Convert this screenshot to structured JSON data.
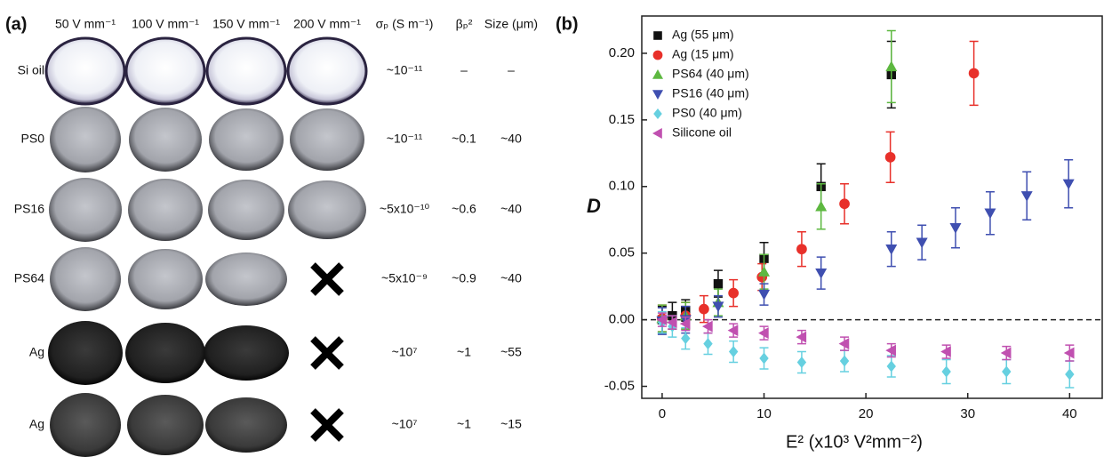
{
  "panel_a": {
    "label": "(a)",
    "headers": [
      "50 V mm⁻¹",
      "100 V mm⁻¹",
      "150 V mm⁻¹",
      "200 V mm⁻¹",
      "σₚ (S m⁻¹)",
      "βₚ²",
      "Size (μm)"
    ],
    "rows": [
      {
        "label": "Si oil",
        "values": [
          "~10⁻¹¹",
          "–",
          "–"
        ]
      },
      {
        "label": "PS0",
        "values": [
          "~10⁻¹¹",
          "~0.1",
          "~40"
        ]
      },
      {
        "label": "PS16",
        "values": [
          "~5x10⁻¹⁰",
          "~0.6",
          "~40"
        ]
      },
      {
        "label": "PS64",
        "values": [
          "~5x10⁻⁹",
          "~0.9",
          "~40"
        ]
      },
      {
        "label": "Ag",
        "values": [
          "~10⁷",
          "~1",
          "~55"
        ]
      },
      {
        "label": "Ag",
        "values": [
          "~10⁷",
          "~1",
          "~15"
        ]
      }
    ]
  },
  "chart_data": {
    "type": "scatter",
    "panel_label": "(b)",
    "x_label": "E² (x10³ V²mm⁻²)",
    "y_label": "D",
    "xlim": [
      -2,
      43.2
    ],
    "xticks": [
      0,
      10,
      20,
      30,
      40
    ],
    "ylim": [
      -0.059,
      0.228
    ],
    "yticks": [
      -0.05,
      {
        "value": 0,
        "label": "0.00"
      },
      0.05,
      {
        "value": 0.1,
        "label": "0.10"
      },
      0.15,
      {
        "value": 0.2,
        "label": "0.20"
      }
    ],
    "legend": "upper left",
    "series": [
      {
        "name": "Ag (55 μm)",
        "color": "#111111",
        "marker": "square",
        "x": [
          0,
          1,
          2.3,
          5.5,
          10,
          15.6,
          22.5
        ],
        "values": [
          0,
          0.003,
          0.007,
          0.027,
          0.046,
          0.1,
          0.184
        ],
        "errors": [
          0.01,
          0.01,
          0.008,
          0.01,
          0.012,
          0.017,
          0.025
        ]
      },
      {
        "name": "Ag (15 μm)",
        "color": "#e8302a",
        "marker": "circle",
        "x": [
          0,
          2.3,
          4.1,
          7,
          9.8,
          13.7,
          17.9,
          22.4,
          30.6
        ],
        "values": [
          0.001,
          0.003,
          0.008,
          0.02,
          0.032,
          0.053,
          0.087,
          0.122,
          0.185
        ],
        "errors": [
          0.01,
          0.01,
          0.01,
          0.01,
          0.01,
          0.013,
          0.015,
          0.019,
          0.024
        ]
      },
      {
        "name": "PS64 (40 μm)",
        "color": "#5db840",
        "marker": "triangle-up",
        "x": [
          0,
          2.3,
          5.5,
          10,
          15.6,
          22.5
        ],
        "values": [
          0.001,
          0.003,
          0.013,
          0.036,
          0.085,
          0.19
        ],
        "errors": [
          0.01,
          0.01,
          0.01,
          0.013,
          0.017,
          0.027
        ]
      },
      {
        "name": "PS16 (40 μm)",
        "color": "#3f4fb0",
        "marker": "triangle-down",
        "x": [
          0,
          2.3,
          5.5,
          10,
          15.6,
          22.5,
          25.5,
          28.8,
          32.2,
          35.8,
          39.9
        ],
        "values": [
          -0.001,
          0,
          0.01,
          0.019,
          0.035,
          0.053,
          0.058,
          0.069,
          0.08,
          0.093,
          0.102
        ],
        "errors": [
          0.01,
          0.01,
          0.008,
          0.008,
          0.012,
          0.013,
          0.013,
          0.015,
          0.016,
          0.018,
          0.018
        ]
      },
      {
        "name": "PS0 (40 μm)",
        "color": "#66d0e0",
        "marker": "diamond",
        "x": [
          0,
          1,
          2.3,
          4.5,
          7,
          10,
          13.7,
          17.9,
          22.5,
          27.9,
          33.8,
          40
        ],
        "values": [
          -0.002,
          -0.005,
          -0.014,
          -0.018,
          -0.024,
          -0.029,
          -0.032,
          -0.031,
          -0.035,
          -0.039,
          -0.039,
          -0.041
        ],
        "errors": [
          0.008,
          0.008,
          0.008,
          0.008,
          0.008,
          0.008,
          0.008,
          0.008,
          0.008,
          0.009,
          0.009,
          0.01
        ]
      },
      {
        "name": "Silicone oil",
        "color": "#c050b0",
        "marker": "triangle-left",
        "x": [
          0,
          1,
          2.3,
          4.5,
          7,
          10,
          13.7,
          17.9,
          22.5,
          27.9,
          33.8,
          40
        ],
        "values": [
          0,
          -0.002,
          -0.003,
          -0.005,
          -0.008,
          -0.01,
          -0.013,
          -0.018,
          -0.023,
          -0.024,
          -0.025,
          -0.025
        ],
        "errors": [
          0.005,
          0.005,
          0.005,
          0.005,
          0.005,
          0.005,
          0.005,
          0.005,
          0.005,
          0.005,
          0.005,
          0.006
        ]
      }
    ]
  }
}
